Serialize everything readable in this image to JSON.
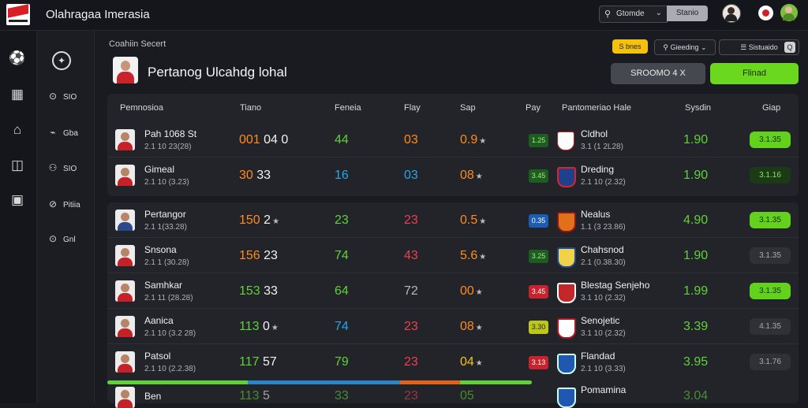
{
  "app": {
    "title": "Olahragaa Imerasia"
  },
  "search": {
    "value": "Gtomde",
    "button": "Stanio"
  },
  "section_label": "Coahiin Secert",
  "page_title": "Pertanog Ulcahdg lohal",
  "chips": {
    "yellow": "S bnes",
    "dropdown1": "Gieeding",
    "dropdown2": "Sistuaido",
    "q": "Q"
  },
  "actions": {
    "grey_button": "SROOMO 4 X",
    "green_button": "Flinad"
  },
  "nav": [
    {
      "icon": "⊙",
      "label": "SIO"
    },
    {
      "icon": "⌁",
      "label": "Gba"
    },
    {
      "icon": "⚇",
      "label": "SIO"
    },
    {
      "icon": "⊘",
      "label": "Pitiia"
    },
    {
      "icon": "⊙",
      "label": "Gnl"
    }
  ],
  "columns": [
    "Pemnosioa",
    "Tiano",
    "Feneia",
    "Flay",
    "Sap",
    "Pay",
    "Pantomeriao Hale",
    "Sysdin",
    "Giap"
  ],
  "rows": [
    {
      "name": "Pah 1068 St",
      "meta": "2.1 10 23(28)",
      "score": "001",
      "score2": "04 0",
      "v1": "44",
      "v2": "03",
      "v3": "0.9",
      "badge": "1.25",
      "team": "Cldhol",
      "team_meta": "3.1 (1 2L28)",
      "odds": "1.90",
      "odds_btn": "3.1.35"
    },
    {
      "name": "Gimeal",
      "meta": "2.1 10 (3.23)",
      "score": "30",
      "score2": "33",
      "v1": "16",
      "v2": "03",
      "v3": "08",
      "badge": "3.45",
      "team": "Dreding",
      "team_meta": "2.1 10 (2.32)",
      "odds": "1.90",
      "odds_btn": "3.1.16"
    },
    {
      "name": "Pertangor",
      "meta": "2.1 1(33.28)",
      "score": "150",
      "score2": "2",
      "v1": "23",
      "v2": "23",
      "v3": "0.5",
      "badge": "0.35",
      "team": "Nealus",
      "team_meta": "1.1 (3 23.86)",
      "odds": "4.90",
      "odds_btn": "3.1.35"
    },
    {
      "name": "Snsona",
      "meta": "2.1 1 (30.28)",
      "score": "156",
      "score2": "23",
      "v1": "74",
      "v2": "43",
      "v3": "5.6",
      "badge": "3.25",
      "team": "Chahsnod",
      "team_meta": "2.1 (0.38.30)",
      "odds": "1.90",
      "odds_btn": "3.1.35"
    },
    {
      "name": "Samhkar",
      "meta": "2.1 11 (28.28)",
      "score": "153",
      "score2": "33",
      "v1": "64",
      "v2": "72",
      "v3": "00",
      "badge": "3.45",
      "team": "Blestag Senjeho",
      "team_meta": "3.1 10 (2.32)",
      "odds": "1.99",
      "odds_btn": "3.1.35"
    },
    {
      "name": "Aanica",
      "meta": "2.1 10 (3.2 28)",
      "score": "113",
      "score2": "0",
      "v1": "74",
      "v2": "23",
      "v3": "08",
      "badge": "3.30",
      "team": "Senojetic",
      "team_meta": "3.1 10 (2.32)",
      "odds": "3.39",
      "odds_btn": "4.1.35"
    },
    {
      "name": "Patsol",
      "meta": "2.1 10 (2.2.38)",
      "score": "117",
      "score2": "57",
      "v1": "79",
      "v2": "23",
      "v3": "04",
      "badge": "3.13",
      "team": "Flandad",
      "team_meta": "2.1 10 (3.33)",
      "odds": "3.95",
      "odds_btn": "3.1.76"
    },
    {
      "name": "Ben",
      "meta": "",
      "score": "113",
      "score2": "5",
      "v1": "33",
      "v2": "23",
      "v3": "05",
      "badge": "",
      "team": "Pomamina",
      "team_meta": "",
      "odds": "3.04",
      "odds_btn": ""
    }
  ],
  "progress": {
    "segments": [
      {
        "fraction": 0.33,
        "color": "#5fd13a"
      },
      {
        "fraction": 0.36,
        "color": "#2a86c9"
      },
      {
        "fraction": 0.14,
        "color": "#e2621a"
      },
      {
        "fraction": 0.17,
        "color": "#5fd13a"
      }
    ]
  },
  "colors": {
    "green": "#5fd13a",
    "orange": "#ff8a1e",
    "blue": "#27a6ea",
    "red": "#ef3f52",
    "yellow": "#f6c21a"
  }
}
